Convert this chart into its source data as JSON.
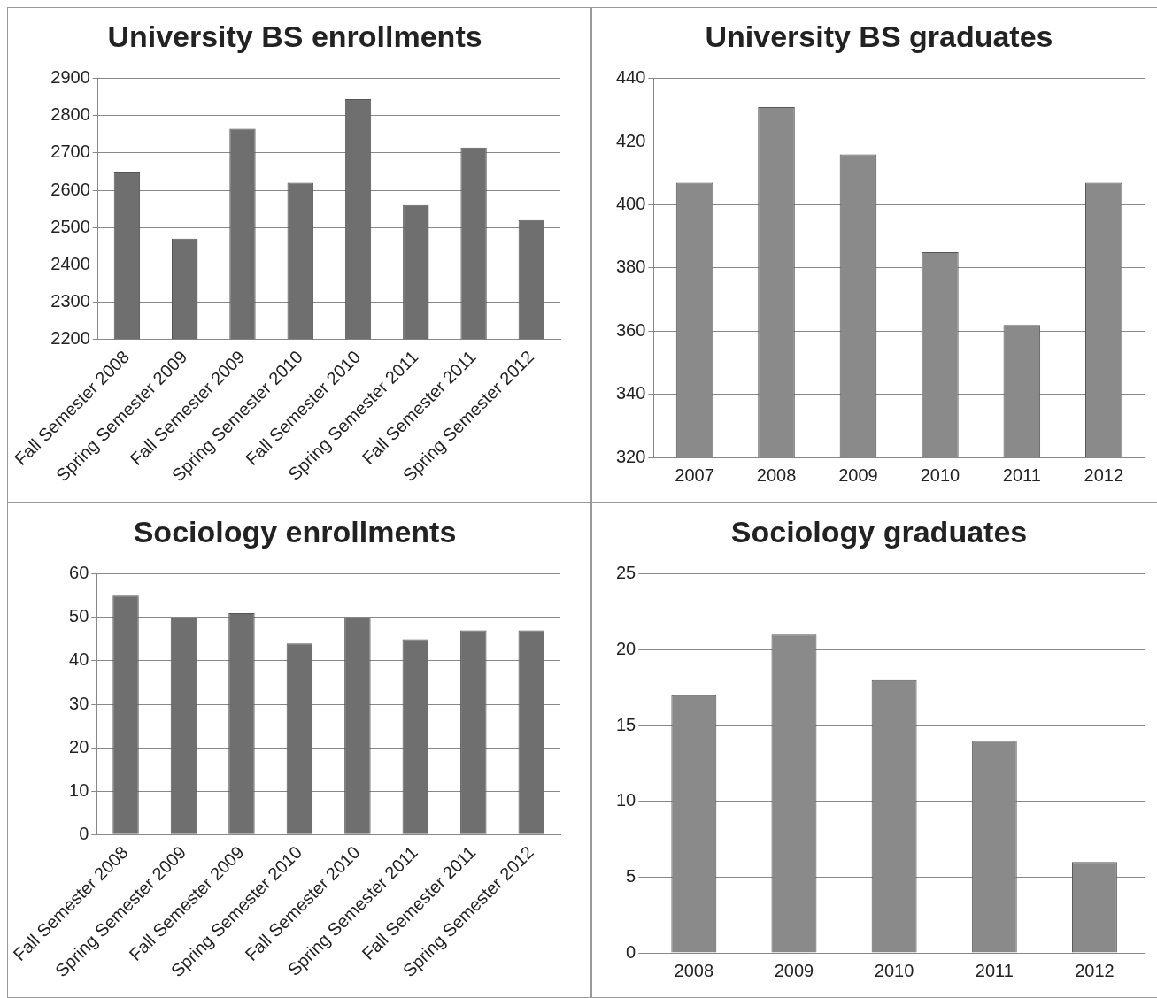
{
  "chart_data": [
    {
      "type": "bar",
      "title": "University BS enrollments",
      "categories": [
        "Fall Semester 2008",
        "Spring Semester 2009",
        "Fall Semester 2009",
        "Spring Semester 2010",
        "Fall Semester 2010",
        "Spring Semester 2011",
        "Fall Semester 2011",
        "Spring Semester 2012"
      ],
      "values": [
        2650,
        2470,
        2765,
        2620,
        2845,
        2560,
        2715,
        2520
      ],
      "color": "#6f6f6f",
      "ylim": [
        2200,
        2900
      ],
      "yticks": [
        2200,
        2300,
        2400,
        2500,
        2600,
        2700,
        2800,
        2900
      ],
      "grid": "y"
    },
    {
      "type": "bar",
      "title": "University BS graduates",
      "categories": [
        "2007",
        "2008",
        "2009",
        "2010",
        "2011",
        "2012"
      ],
      "values": [
        407,
        431,
        416,
        385,
        362,
        407
      ],
      "color": "#8a8a8a",
      "ylim": [
        320,
        440
      ],
      "yticks": [
        320,
        340,
        360,
        380,
        400,
        420,
        440
      ],
      "grid": "y"
    },
    {
      "type": "bar",
      "title": "Sociology enrollments",
      "categories": [
        "Fall Semester 2008",
        "Spring Semester 2009",
        "Fall Semester 2009",
        "Spring Semester 2010",
        "Fall Semester 2010",
        "Spring Semester 2011",
        "Fall Semester 2011",
        "Spring Semester 2012"
      ],
      "values": [
        55,
        50,
        51,
        44,
        50,
        45,
        47,
        47
      ],
      "color": "#6f6f6f",
      "ylim": [
        0,
        60
      ],
      "yticks": [
        0,
        10,
        20,
        30,
        40,
        50,
        60
      ],
      "grid": "y"
    },
    {
      "type": "bar",
      "title": "Sociology graduates",
      "categories": [
        "2008",
        "2009",
        "2010",
        "2011",
        "2012"
      ],
      "values": [
        17,
        21,
        18,
        14,
        6
      ],
      "color": "#8a8a8a",
      "ylim": [
        0,
        25
      ],
      "yticks": [
        0,
        5,
        10,
        15,
        20,
        25
      ],
      "grid": "y"
    }
  ]
}
